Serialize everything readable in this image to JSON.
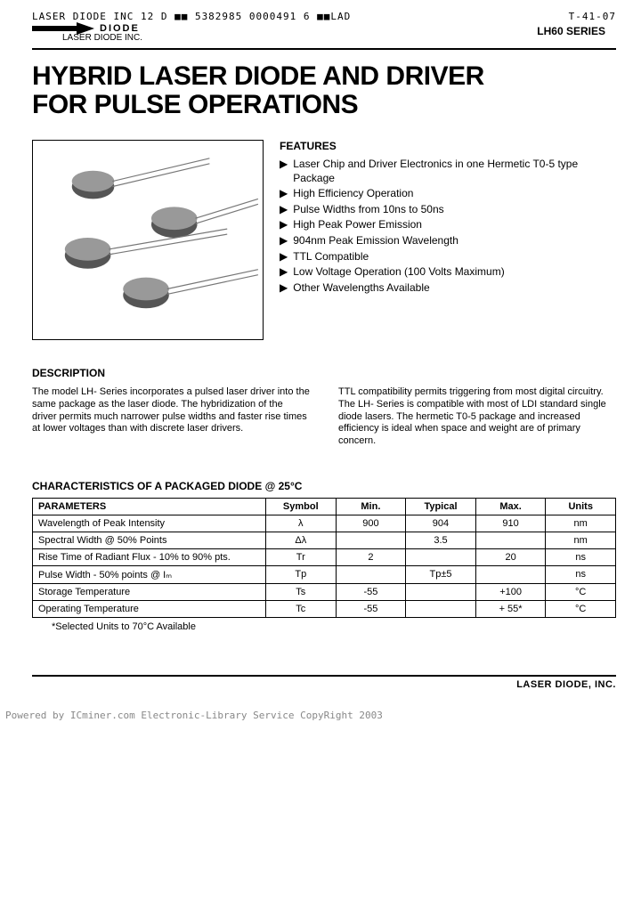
{
  "header": {
    "left": "LASER DIODE INC     12  D  ■■ 5382985 0000491 6 ■■LAD",
    "right": "T-41-07",
    "series": "LH60 SERIES",
    "logo_text": "DIODE",
    "company_small": "LASER DIODE INC."
  },
  "title_line1": "HYBRID LASER DIODE AND DRIVER",
  "title_line2": "FOR PULSE OPERATIONS",
  "features": {
    "heading": "FEATURES",
    "items": [
      "Laser Chip and Driver Electronics in one Hermetic T0-5 type Package",
      "High Efficiency Operation",
      "Pulse Widths from 10ns to 50ns",
      "High Peak Power Emission",
      "904nm Peak Emission Wavelength",
      "TTL Compatible",
      "Low Voltage Operation (100 Volts Maximum)",
      "Other Wavelengths Available"
    ]
  },
  "description": {
    "heading": "DESCRIPTION",
    "col1": "The model LH- Series incorporates a pulsed laser driver into the same package as the laser diode. The hybridization of the driver permits much narrower pulse widths and faster rise times at lower voltages than with discrete laser drivers.",
    "col2": "TTL compatibility permits triggering from most digital circuitry. The LH- Series is compatible with most of LDI standard single diode lasers. The hermetic T0-5 package and increased efficiency is ideal when space and weight are of primary concern."
  },
  "characteristics": {
    "heading": "CHARACTERISTICS OF A PACKAGED DIODE @ 25°C",
    "columns": [
      "PARAMETERS",
      "Symbol",
      "Min.",
      "Typical",
      "Max.",
      "Units"
    ],
    "rows": [
      [
        "Wavelength of Peak Intensity",
        "λ",
        "900",
        "904",
        "910",
        "nm"
      ],
      [
        "Spectral Width @ 50% Points",
        "Δλ",
        "",
        "3.5",
        "",
        "nm"
      ],
      [
        "Rise Time of Radiant Flux - 10% to 90% pts.",
        "Tr",
        "2",
        "",
        "20",
        "ns"
      ],
      [
        "Pulse Width - 50% points @ Iₘ",
        "Tp",
        "",
        "Tp±5",
        "",
        "ns"
      ],
      [
        "Storage Temperature",
        "Ts",
        "-55",
        "",
        "+100",
        "°C"
      ],
      [
        "Operating Temperature",
        "Tc",
        "-55",
        "",
        "+ 55*",
        "°C"
      ]
    ],
    "footnote": "*Selected Units to 70°C Available",
    "col_widths": [
      "40%",
      "12%",
      "12%",
      "12%",
      "12%",
      "12%"
    ]
  },
  "footer": {
    "company": "LASER DIODE, INC.",
    "watermark": "Powered by ICminer.com Electronic-Library Service CopyRight 2003"
  },
  "colors": {
    "text": "#000000",
    "border": "#000000",
    "bg": "#ffffff",
    "watermark": "#888888"
  }
}
